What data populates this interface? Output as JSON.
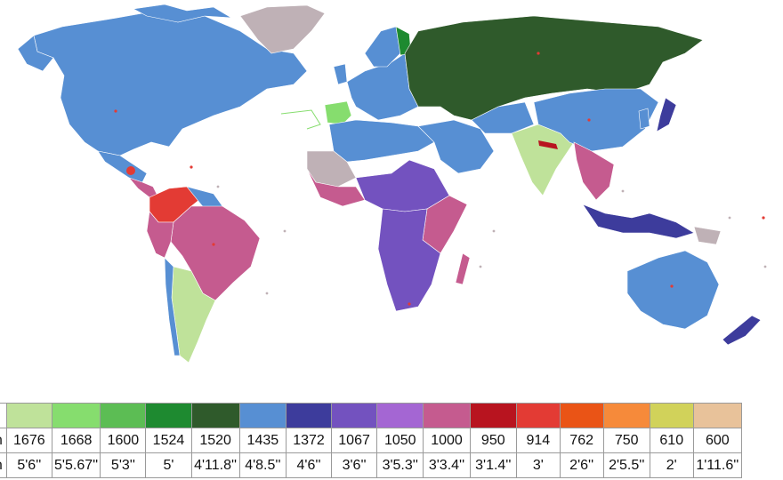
{
  "legend": {
    "row_labels": {
      "swatch": "",
      "mm": "mm",
      "ft": "ft-in"
    },
    "gauges": [
      {
        "mm": "1676",
        "ft": "5'6''",
        "color": "#bfe29a"
      },
      {
        "mm": "1668",
        "ft": "5'5.67''",
        "color": "#86dd6e"
      },
      {
        "mm": "1600",
        "ft": "5'3''",
        "color": "#5cbd54"
      },
      {
        "mm": "1524",
        "ft": "5'",
        "color": "#1e8a30"
      },
      {
        "mm": "1520",
        "ft": "4'11.8''",
        "color": "#2f5a2b"
      },
      {
        "mm": "1435",
        "ft": "4'8.5''",
        "color": "#578fd3"
      },
      {
        "mm": "1372",
        "ft": "4'6''",
        "color": "#3d3c9c"
      },
      {
        "mm": "1067",
        "ft": "3'6''",
        "color": "#7352bf"
      },
      {
        "mm": "1050",
        "ft": "3'5.3''",
        "color": "#a466d3"
      },
      {
        "mm": "1000",
        "ft": "3'3.4''",
        "color": "#c55b8f"
      },
      {
        "mm": "950",
        "ft": "3'1.4''",
        "color": "#b8141f"
      },
      {
        "mm": "914",
        "ft": "3'",
        "color": "#e33b34"
      },
      {
        "mm": "762",
        "ft": "2'6''",
        "color": "#ea5416"
      },
      {
        "mm": "750",
        "ft": "2'5.5''",
        "color": "#f68a3a"
      },
      {
        "mm": "610",
        "ft": "2'",
        "color": "#d1d25a"
      },
      {
        "mm": "600",
        "ft": "1'11.6''",
        "color": "#e8c29a"
      }
    ],
    "no_rail_color": "#bfb1b6"
  }
}
